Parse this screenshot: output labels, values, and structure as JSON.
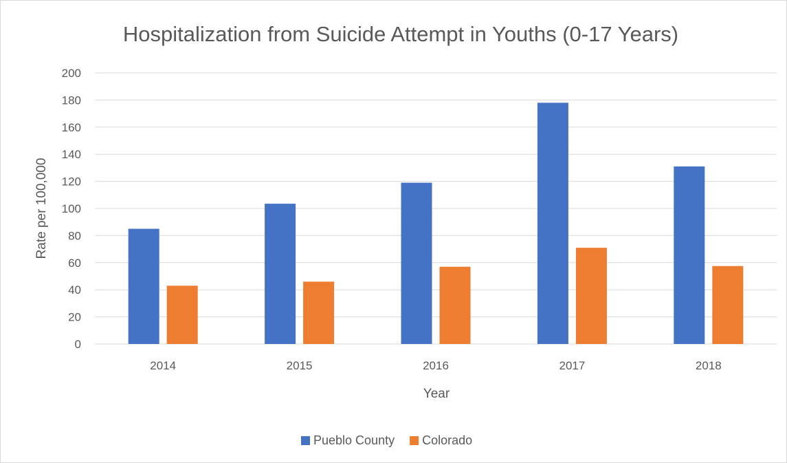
{
  "chart_data": {
    "type": "bar",
    "title": "Hospitalization from Suicide Attempt in Youths (0-17 Years)",
    "xlabel": "Year",
    "ylabel": "Rate per 100,000",
    "categories": [
      "2014",
      "2015",
      "2016",
      "2017",
      "2018"
    ],
    "series": [
      {
        "name": "Pueblo County",
        "color": "#4472c4",
        "values": [
          85,
          103.5,
          119,
          178,
          131
        ]
      },
      {
        "name": "Colorado",
        "color": "#ed7d31",
        "values": [
          43,
          46,
          57,
          71,
          57.5
        ]
      }
    ],
    "ylim": [
      0,
      200
    ],
    "yticks": [
      "0",
      "20",
      "40",
      "60",
      "80",
      "100",
      "120",
      "140",
      "160",
      "180",
      "200"
    ],
    "grid": true,
    "legend_position": "bottom"
  }
}
